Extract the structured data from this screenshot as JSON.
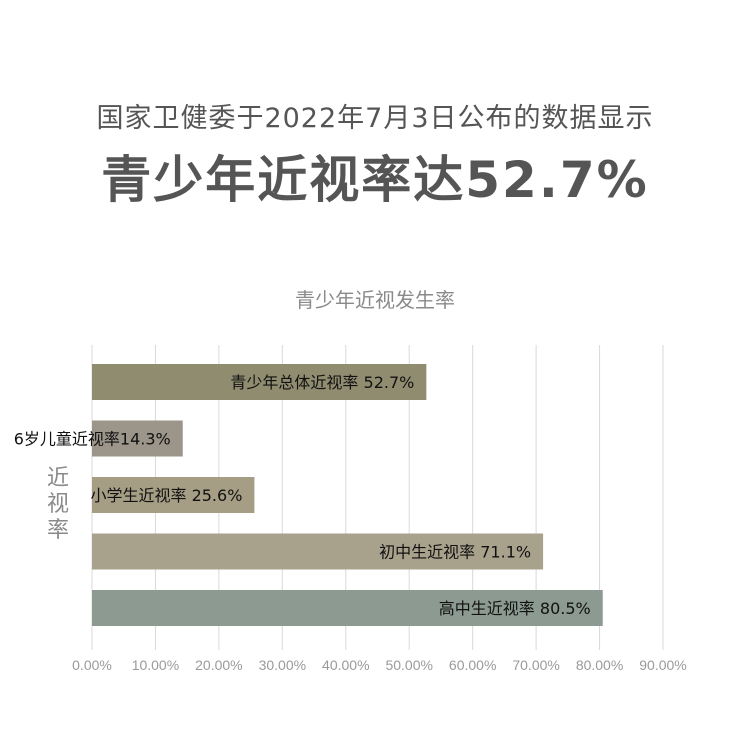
{
  "header": {
    "subtitle": "国家卫健委于2022年7月3日公布的数据显示",
    "title": "青少年近视率达52.7%"
  },
  "chart_data": {
    "type": "bar",
    "orientation": "horizontal",
    "title": "青少年近视发生率",
    "ylabel": "近视率",
    "xlabel": "",
    "xlim": [
      0,
      90
    ],
    "x_ticks": [
      "0.00%",
      "10.00%",
      "20.00%",
      "30.00%",
      "40.00%",
      "50.00%",
      "60.00%",
      "70.00%",
      "80.00%",
      "90.00%"
    ],
    "grid": "vertical",
    "categories": [
      "青少年总体近视率",
      "6岁儿童近视率",
      "小学生近视率",
      "初中生近视率",
      "高中生近视率"
    ],
    "values": [
      52.7,
      14.3,
      25.6,
      71.1,
      80.5
    ],
    "data_labels": [
      "青少年总体近视率 52.7%",
      "6岁儿童近视率14.3%",
      "小学生近视率 25.6%",
      "初中生近视率 71.1%",
      "高中生近视率 80.5%"
    ],
    "colors": [
      "#8f8c6f",
      "#9b958a",
      "#a59d84",
      "#a8a18c",
      "#8c9a92"
    ],
    "label_color": "#111111",
    "grid_color": "#d9d9d9",
    "tick_color": "#9a9a9a"
  }
}
